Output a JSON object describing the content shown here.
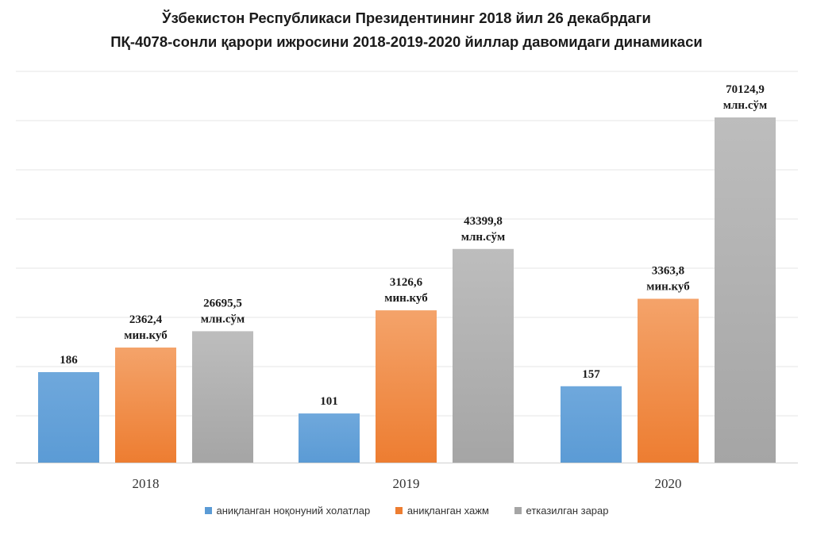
{
  "chart_data": {
    "type": "bar",
    "title_lines": [
      "Ўзбекистон Республикаси Президентининг 2018 йил 26 декабрдаги",
      "ПҚ-4078-сонли қарори  ижросини  2018-2019-2020 йиллар давомидаги динамикаси"
    ],
    "categories": [
      "2018",
      "2019",
      "2020"
    ],
    "series": [
      {
        "name": "аниқланган ноқонуний холатлар",
        "color": "#5b9bd5",
        "values": [
          186,
          101,
          157
        ],
        "labels": [
          [
            "186"
          ],
          [
            "101"
          ],
          [
            "157"
          ]
        ]
      },
      {
        "name": "аниқланган хажм",
        "color": "#ed7d31",
        "values": [
          2362.4,
          3126.6,
          3363.8
        ],
        "labels": [
          [
            "2362,4",
            "мин.куб"
          ],
          [
            "3126,6",
            "мин.куб"
          ],
          [
            "3363,8",
            "мин.куб"
          ]
        ]
      },
      {
        "name": "етказилган зарар",
        "color": "#a5a5a5",
        "values": [
          26695.5,
          43399.8,
          70124.9
        ],
        "labels": [
          [
            "26695,5",
            "млн.сўм"
          ],
          [
            "43399,8",
            "млн.сўм"
          ],
          [
            "70124,9",
            "млн.сўм"
          ]
        ]
      }
    ],
    "gridlines": true,
    "legend_position": "bottom",
    "note": "series plotted on independent visual scales as in the original"
  }
}
